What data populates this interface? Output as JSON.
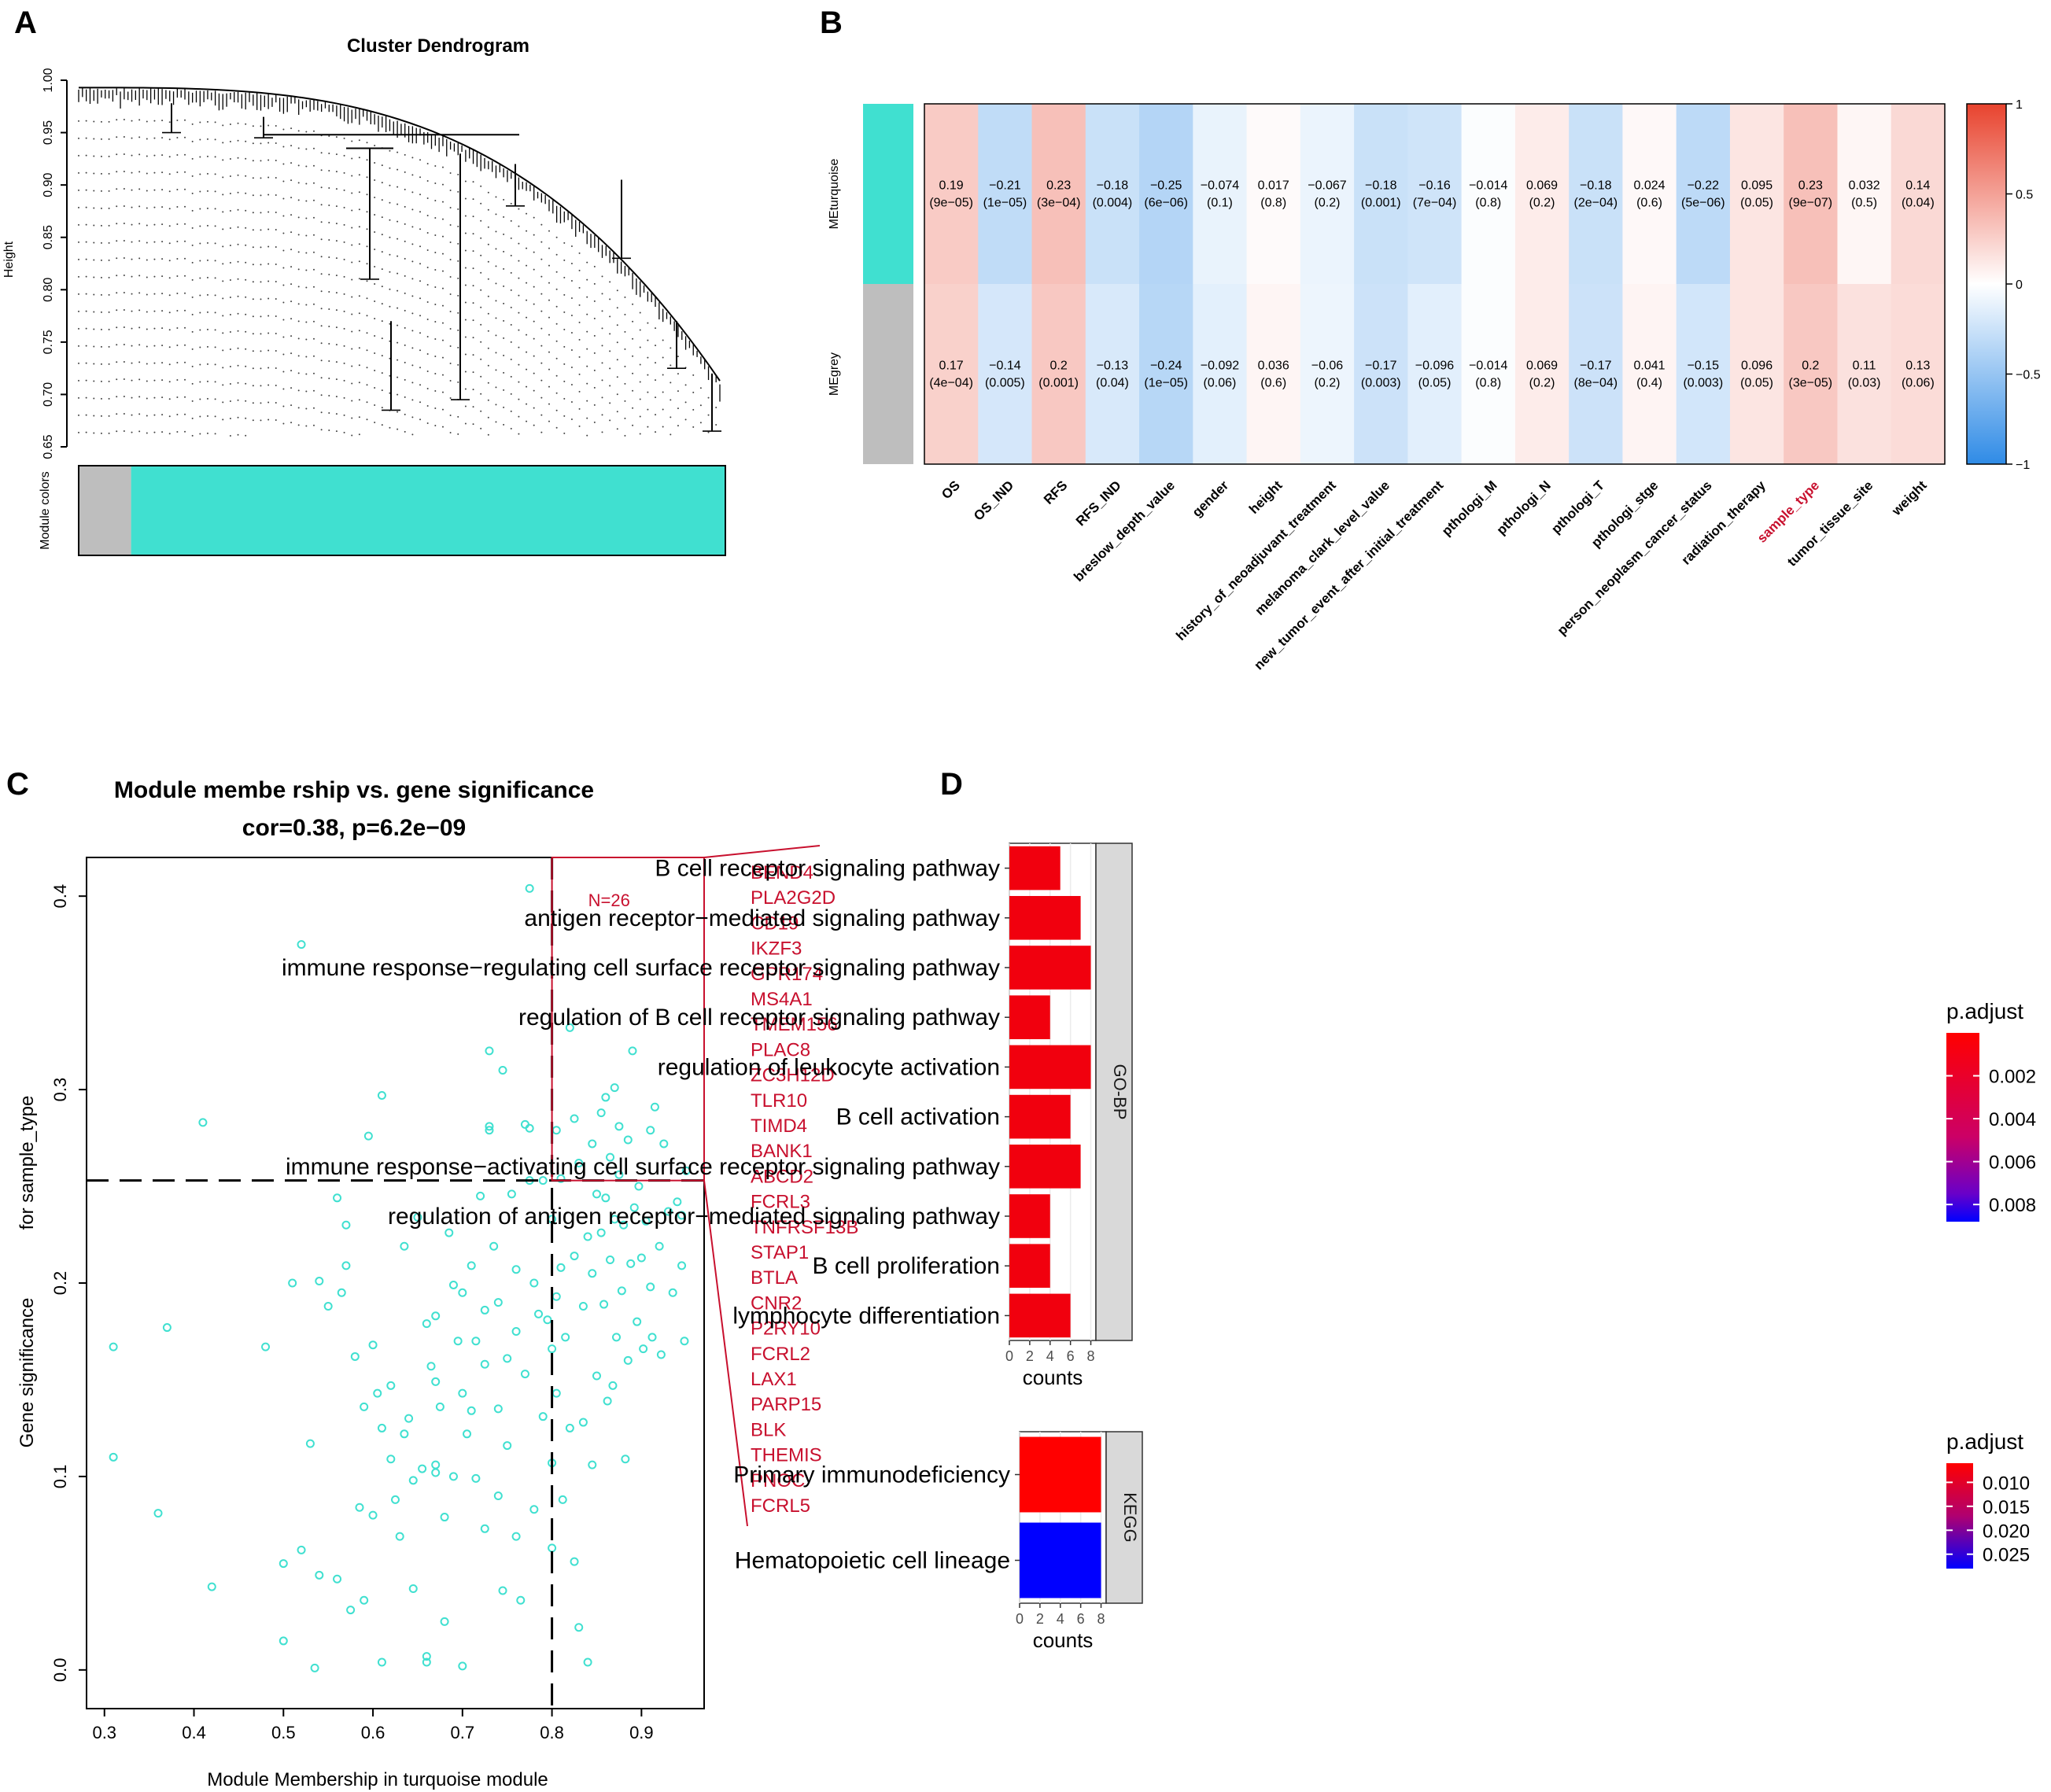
{
  "panels": {
    "a": "A",
    "b": "B",
    "c": "C",
    "d": "D"
  },
  "colors": {
    "turquoise": "#40e0d0",
    "grey": "#bebebe",
    "red_label": "#c8102e",
    "scatter_point": "#40e0d0",
    "heat_pos": "#e8432e",
    "heat_neg": "#2f8be6",
    "bar_low": "#ff0000",
    "bar_high": "#0000ff"
  },
  "chart_data": [
    {
      "id": "A",
      "type": "dendrogram",
      "title": "Cluster Dendrogram",
      "ylabel": "Height",
      "ylim": [
        0.65,
        1.0
      ],
      "yticks": [
        "1.00",
        "0.95",
        "0.90",
        "0.85",
        "0.80",
        "0.75",
        "0.70",
        "0.65"
      ],
      "colorbar_label": "Module colors",
      "modules": [
        {
          "name": "grey",
          "fraction": 0.08
        },
        {
          "name": "turquoise",
          "fraction": 0.92
        }
      ]
    },
    {
      "id": "B",
      "type": "heatmap",
      "rows": [
        "MEturquoise",
        "MEgrey"
      ],
      "row_colors": [
        "turquoise",
        "grey"
      ],
      "columns": [
        "OS",
        "OS_IND",
        "RFS",
        "RFS_IND",
        "breslow_depth_value",
        "gender",
        "height",
        "history_of_neoadjuvant_treatment",
        "melanoma_clark_level_value",
        "new_tumor_event_after_initial_treatment",
        "pthologi_M",
        "pthologi_N",
        "pthologi_T",
        "pthologi_stge",
        "person_neoplasm_cancer_status",
        "radiation_therapy",
        "sample_type",
        "tumor_tissue_site",
        "weight"
      ],
      "highlight_column": "sample_type",
      "values": [
        [
          0.19,
          -0.21,
          0.23,
          -0.18,
          -0.25,
          -0.074,
          0.017,
          -0.067,
          -0.18,
          -0.16,
          -0.014,
          0.069,
          -0.18,
          0.024,
          -0.22,
          0.095,
          0.23,
          0.032,
          0.14
        ],
        [
          0.17,
          -0.14,
          0.2,
          -0.13,
          -0.24,
          -0.092,
          0.036,
          -0.06,
          -0.17,
          -0.096,
          -0.014,
          0.069,
          -0.17,
          0.041,
          -0.15,
          0.096,
          0.2,
          0.11,
          0.13
        ]
      ],
      "value_labels": [
        [
          "0.19",
          "−0.21",
          "0.23",
          "−0.18",
          "−0.25",
          "−0.074",
          "0.017",
          "−0.067",
          "−0.18",
          "−0.16",
          "−0.014",
          "0.069",
          "−0.18",
          "0.024",
          "−0.22",
          "0.095",
          "0.23",
          "0.032",
          "0.14"
        ],
        [
          "0.17",
          "−0.14",
          "0.2",
          "−0.13",
          "−0.24",
          "−0.092",
          "0.036",
          "−0.06",
          "−0.17",
          "−0.096",
          "−0.014",
          "0.069",
          "−0.17",
          "0.041",
          "−0.15",
          "0.096",
          "0.2",
          "0.11",
          "0.13"
        ]
      ],
      "pvalues": [
        [
          "(9e−05)",
          "(1e−05)",
          "(3e−04)",
          "(0.004)",
          "(6e−06)",
          "(0.1)",
          "(0.8)",
          "(0.2)",
          "(0.001)",
          "(7e−04)",
          "(0.8)",
          "(0.2)",
          "(2e−04)",
          "(0.6)",
          "(5e−06)",
          "(0.05)",
          "(9e−07)",
          "(0.5)",
          "(0.04)"
        ],
        [
          "(4e−04)",
          "(0.005)",
          "(0.001)",
          "(0.04)",
          "(1e−05)",
          "(0.06)",
          "(0.6)",
          "(0.2)",
          "(0.003)",
          "(0.05)",
          "(0.8)",
          "(0.2)",
          "(8e−04)",
          "(0.4)",
          "(0.003)",
          "(0.05)",
          "(3e−05)",
          "(0.03)",
          "(0.06)"
        ]
      ],
      "scale_range": [
        -1,
        1
      ],
      "scale_ticks": [
        "1",
        "0.5",
        "0",
        "−0.5",
        "−1"
      ]
    },
    {
      "id": "C",
      "type": "scatter",
      "title_line1": "Module membe rship vs. gene significance",
      "title_line2": "cor=0.38, p=6.2e−09",
      "xlabel": "Module Membership in turquoise module",
      "ylabel_line1": "Gene significance",
      "ylabel_line2": "for sample_type",
      "xlim": [
        0.28,
        0.97
      ],
      "ylim": [
        -0.02,
        0.42
      ],
      "xticks": [
        0.3,
        0.4,
        0.5,
        0.6,
        0.7,
        0.8,
        0.9
      ],
      "yticks": [
        0.0,
        0.1,
        0.2,
        0.3,
        0.4
      ],
      "xtick_labels": [
        "0.3",
        "0.4",
        "0.5",
        "0.6",
        "0.7",
        "0.8",
        "0.9"
      ],
      "ytick_labels": [
        "0.0",
        "0.1",
        "0.2",
        "0.3",
        "0.4"
      ],
      "threshold_x": 0.8,
      "threshold_y": 0.253,
      "box_label": "N=26",
      "genes": [
        "BEND4",
        "PLA2G2D",
        "CD19",
        "IKZF3",
        "GPR174",
        "MS4A1",
        "TMEM156",
        "PLAC8",
        "ZC3H12D",
        "TLR10",
        "TIMD4",
        "BANK1",
        "ABCD2",
        "FCRL3",
        "TNFRSF13B",
        "STAP1",
        "BTLA",
        "CNR2",
        "P2RY10",
        "FCRL2",
        "LAX1",
        "PARP15",
        "BLK",
        "THEMIS",
        "PNOC",
        "FCRL5"
      ],
      "points": [
        [
          0.775,
          0.404
        ],
        [
          0.52,
          0.375
        ],
        [
          0.31,
          0.167
        ],
        [
          0.31,
          0.11
        ],
        [
          0.37,
          0.177
        ],
        [
          0.36,
          0.081
        ],
        [
          0.41,
          0.283
        ],
        [
          0.42,
          0.043
        ],
        [
          0.48,
          0.167
        ],
        [
          0.51,
          0.2
        ],
        [
          0.5,
          0.055
        ],
        [
          0.5,
          0.015
        ],
        [
          0.52,
          0.062
        ],
        [
          0.53,
          0.117
        ],
        [
          0.535,
          0.001
        ],
        [
          0.54,
          0.201
        ],
        [
          0.54,
          0.049
        ],
        [
          0.55,
          0.188
        ],
        [
          0.56,
          0.244
        ],
        [
          0.56,
          0.047
        ],
        [
          0.565,
          0.195
        ],
        [
          0.57,
          0.23
        ],
        [
          0.57,
          0.209
        ],
        [
          0.575,
          0.031
        ],
        [
          0.58,
          0.162
        ],
        [
          0.585,
          0.084
        ],
        [
          0.59,
          0.136
        ],
        [
          0.59,
          0.036
        ],
        [
          0.595,
          0.276
        ],
        [
          0.6,
          0.168
        ],
        [
          0.6,
          0.08
        ],
        [
          0.605,
          0.143
        ],
        [
          0.61,
          0.297
        ],
        [
          0.61,
          0.125
        ],
        [
          0.61,
          0.004
        ],
        [
          0.62,
          0.147
        ],
        [
          0.62,
          0.109
        ],
        [
          0.625,
          0.088
        ],
        [
          0.63,
          0.069
        ],
        [
          0.635,
          0.219
        ],
        [
          0.635,
          0.122
        ],
        [
          0.64,
          0.13
        ],
        [
          0.645,
          0.042
        ],
        [
          0.645,
          0.098
        ],
        [
          0.65,
          0.234
        ],
        [
          0.655,
          0.104
        ],
        [
          0.66,
          0.179
        ],
        [
          0.66,
          0.007
        ],
        [
          0.66,
          0.004
        ],
        [
          0.665,
          0.157
        ],
        [
          0.67,
          0.183
        ],
        [
          0.67,
          0.149
        ],
        [
          0.67,
          0.106
        ],
        [
          0.67,
          0.102
        ],
        [
          0.675,
          0.136
        ],
        [
          0.68,
          0.079
        ],
        [
          0.68,
          0.025
        ],
        [
          0.685,
          0.226
        ],
        [
          0.69,
          0.199
        ],
        [
          0.69,
          0.1
        ],
        [
          0.695,
          0.17
        ],
        [
          0.7,
          0.002
        ],
        [
          0.7,
          0.195
        ],
        [
          0.7,
          0.143
        ],
        [
          0.705,
          0.122
        ],
        [
          0.71,
          0.209
        ],
        [
          0.71,
          0.134
        ],
        [
          0.715,
          0.17
        ],
        [
          0.715,
          0.099
        ],
        [
          0.72,
          0.245
        ],
        [
          0.725,
          0.186
        ],
        [
          0.725,
          0.158
        ],
        [
          0.725,
          0.073
        ],
        [
          0.73,
          0.32
        ],
        [
          0.73,
          0.281
        ],
        [
          0.73,
          0.279
        ],
        [
          0.735,
          0.219
        ],
        [
          0.74,
          0.19
        ],
        [
          0.74,
          0.135
        ],
        [
          0.74,
          0.09
        ],
        [
          0.745,
          0.31
        ],
        [
          0.745,
          0.041
        ],
        [
          0.75,
          0.161
        ],
        [
          0.75,
          0.116
        ],
        [
          0.755,
          0.246
        ],
        [
          0.76,
          0.207
        ],
        [
          0.76,
          0.175
        ],
        [
          0.76,
          0.069
        ],
        [
          0.765,
          0.036
        ],
        [
          0.77,
          0.282
        ],
        [
          0.77,
          0.153
        ],
        [
          0.775,
          0.28
        ],
        [
          0.775,
          0.253
        ],
        [
          0.78,
          0.2
        ],
        [
          0.78,
          0.083
        ],
        [
          0.785,
          0.184
        ],
        [
          0.79,
          0.131
        ],
        [
          0.79,
          0.253
        ],
        [
          0.795,
          0.181
        ],
        [
          0.8,
          0.233
        ],
        [
          0.8,
          0.166
        ],
        [
          0.8,
          0.107
        ],
        [
          0.8,
          0.063
        ],
        [
          0.805,
          0.279
        ],
        [
          0.805,
          0.193
        ],
        [
          0.805,
          0.143
        ],
        [
          0.81,
          0.208
        ],
        [
          0.81,
          0.254
        ],
        [
          0.812,
          0.088
        ],
        [
          0.815,
          0.172
        ],
        [
          0.82,
          0.332
        ],
        [
          0.82,
          0.125
        ],
        [
          0.825,
          0.285
        ],
        [
          0.825,
          0.214
        ],
        [
          0.825,
          0.056
        ],
        [
          0.83,
          0.022
        ],
        [
          0.83,
          0.262
        ],
        [
          0.835,
          0.188
        ],
        [
          0.835,
          0.128
        ],
        [
          0.84,
          0.224
        ],
        [
          0.84,
          0.004
        ],
        [
          0.845,
          0.272
        ],
        [
          0.845,
          0.205
        ],
        [
          0.845,
          0.106
        ],
        [
          0.85,
          0.246
        ],
        [
          0.85,
          0.152
        ],
        [
          0.855,
          0.288
        ],
        [
          0.855,
          0.226
        ],
        [
          0.858,
          0.189
        ],
        [
          0.86,
          0.296
        ],
        [
          0.86,
          0.244
        ],
        [
          0.862,
          0.139
        ],
        [
          0.865,
          0.265
        ],
        [
          0.865,
          0.212
        ],
        [
          0.868,
          0.147
        ],
        [
          0.87,
          0.301
        ],
        [
          0.87,
          0.233
        ],
        [
          0.872,
          0.172
        ],
        [
          0.875,
          0.281
        ],
        [
          0.875,
          0.256
        ],
        [
          0.878,
          0.196
        ],
        [
          0.88,
          0.23
        ],
        [
          0.882,
          0.109
        ],
        [
          0.885,
          0.274
        ],
        [
          0.885,
          0.16
        ],
        [
          0.888,
          0.21
        ],
        [
          0.89,
          0.32
        ],
        [
          0.892,
          0.239
        ],
        [
          0.895,
          0.18
        ],
        [
          0.897,
          0.25
        ],
        [
          0.9,
          0.213
        ],
        [
          0.902,
          0.166
        ],
        [
          0.905,
          0.232
        ],
        [
          0.91,
          0.279
        ],
        [
          0.91,
          0.198
        ],
        [
          0.912,
          0.172
        ],
        [
          0.915,
          0.291
        ],
        [
          0.92,
          0.219
        ],
        [
          0.922,
          0.163
        ],
        [
          0.925,
          0.272
        ],
        [
          0.93,
          0.237
        ],
        [
          0.935,
          0.195
        ],
        [
          0.94,
          0.242
        ],
        [
          0.945,
          0.235
        ],
        [
          0.945,
          0.209
        ],
        [
          0.948,
          0.17
        ],
        [
          0.95,
          0.258
        ]
      ]
    },
    {
      "id": "D-GO",
      "type": "bar",
      "orientation": "horizontal",
      "facet": "GO-BP",
      "xlabel": "counts",
      "xlim": [
        0,
        8.5
      ],
      "xticks": [
        "0",
        "2",
        "4",
        "6",
        "8"
      ],
      "categories": [
        "B cell receptor signaling pathway",
        "antigen receptor−mediated signaling pathway",
        "immune response−regulating cell surface receptor signaling pathway",
        "regulation of B cell receptor signaling pathway",
        "regulation of leukocyte activation",
        "B cell activation",
        "immune response−activating cell surface receptor signaling pathway",
        "regulation of antigen receptor−mediated signaling pathway",
        "B cell proliferation",
        "lymphocyte differentiation"
      ],
      "values": [
        5,
        7,
        8,
        4,
        8,
        6,
        7,
        4,
        4,
        6
      ],
      "padjust": [
        0.0005,
        0.0005,
        0.0005,
        0.0005,
        0.0005,
        0.0005,
        0.0005,
        0.0005,
        0.0005,
        0.0005
      ],
      "legend_title": "p.adjust",
      "legend_range": [
        0.0,
        0.0088
      ],
      "legend_ticks": [
        0.002,
        0.004,
        0.006,
        0.008
      ],
      "legend_labels": [
        "0.002",
        "0.004",
        "0.006",
        "0.008"
      ]
    },
    {
      "id": "D-KEGG",
      "type": "bar",
      "orientation": "horizontal",
      "facet": "KEGG",
      "xlabel": "counts",
      "xlim": [
        0,
        8.5
      ],
      "xticks": [
        "0",
        "2",
        "4",
        "6",
        "8"
      ],
      "categories": [
        "Primary immunodeficiency",
        "Hematopoietic cell lineage"
      ],
      "values": [
        8,
        8
      ],
      "padjust": [
        0.006,
        0.028
      ],
      "legend_title": "p.adjust",
      "legend_range": [
        0.006,
        0.028
      ],
      "legend_ticks": [
        0.01,
        0.015,
        0.02,
        0.025
      ],
      "legend_labels": [
        "0.010",
        "0.015",
        "0.020",
        "0.025"
      ]
    }
  ]
}
